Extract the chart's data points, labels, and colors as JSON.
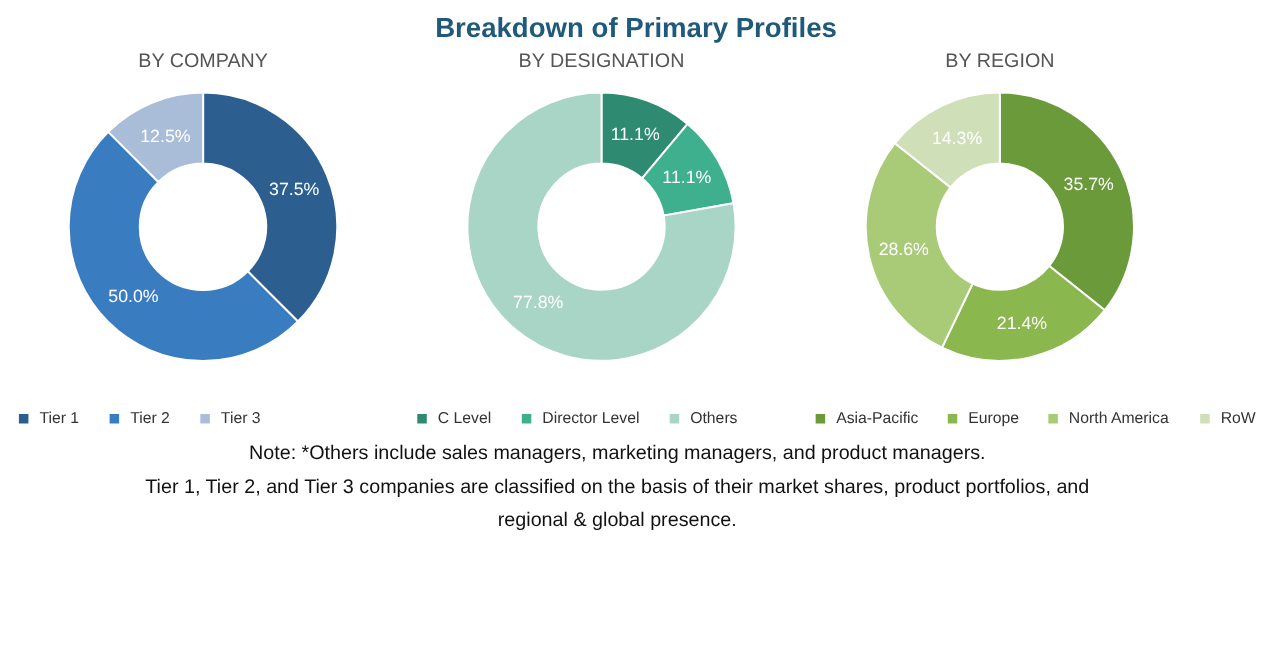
{
  "chart_data": [
    {
      "type": "donut",
      "title": "BY COMPANY",
      "categories": [
        "Tier 1",
        "Tier 2",
        "Tier 3"
      ],
      "values": [
        37.5,
        50.0,
        12.5
      ],
      "colors": [
        "#2c5f8f",
        "#3a7cc0",
        "#a9bcd8"
      ],
      "value_labels": [
        "37.5%",
        "50.0%",
        "12.5%"
      ],
      "legend": "bottom",
      "annotations": [
        "Breakdown of Primary Profiles",
        "Note: *Others include sales managers, marketing managers, and product managers.",
        "Tier 1, Tier 2, and Tier 3 companies are classified on the basis of their market shares, product portfolios, and regional & global presence."
      ]
    },
    {
      "type": "donut",
      "title": "BY DESIGNATION",
      "categories": [
        "C Level",
        "Director Level",
        "Others"
      ],
      "values": [
        11.1,
        11.1,
        77.8
      ],
      "colors": [
        "#2e8a70",
        "#3fb08e",
        "#a8d5c6"
      ],
      "value_labels": [
        "11.1%",
        "11.1%",
        "77.8%"
      ],
      "legend": "bottom"
    },
    {
      "type": "donut",
      "title": "BY REGION",
      "categories": [
        "Asia-Pacific",
        "Europe",
        "North America",
        "RoW"
      ],
      "values": [
        35.7,
        21.4,
        28.6,
        14.3
      ],
      "colors": [
        "#6a9a3a",
        "#8ab84e",
        "#a9cb78",
        "#cfe0b8"
      ],
      "value_labels": [
        "35.7%",
        "21.4%",
        "28.6%",
        "14.3%"
      ],
      "legend": "bottom"
    }
  ]
}
